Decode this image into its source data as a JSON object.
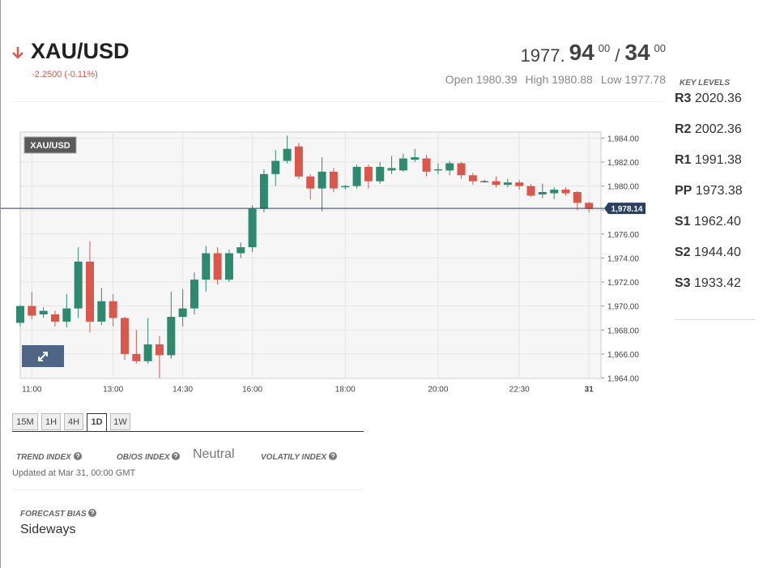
{
  "header": {
    "symbol": "XAU/USD",
    "change": "-2.2500 (-0.11%)",
    "bid": {
      "base": "1977.",
      "main": "94",
      "sup": "00"
    },
    "separator": "/",
    "ask": {
      "main": "34",
      "sup": "00"
    },
    "stats": [
      {
        "label": "Open",
        "value": "1980.39"
      },
      {
        "label": "High",
        "value": "1980.88"
      },
      {
        "label": "Low",
        "value": "1977.78"
      }
    ]
  },
  "key_levels": {
    "title": "KEY LEVELS",
    "levels": [
      {
        "name": "R3",
        "value": "2020.36"
      },
      {
        "name": "R2",
        "value": "2002.36"
      },
      {
        "name": "R1",
        "value": "1991.38"
      },
      {
        "name": "PP",
        "value": "1973.38"
      },
      {
        "name": "S1",
        "value": "1962.40"
      },
      {
        "name": "S2",
        "value": "1944.40"
      },
      {
        "name": "S3",
        "value": "1933.42"
      }
    ]
  },
  "chart_data": {
    "type": "candlestick",
    "title": "XAU/USD",
    "categories": [
      null,
      "11:00",
      null,
      null,
      null,
      null,
      null,
      null,
      "13:00",
      null,
      null,
      null,
      null,
      null,
      "14:30",
      null,
      null,
      null,
      null,
      null,
      "16:00",
      null,
      null,
      null,
      null,
      null,
      null,
      null,
      "18:00",
      null,
      null,
      null,
      null,
      null,
      null,
      null,
      "20:00",
      null,
      null,
      null,
      null,
      null,
      null,
      "22:30",
      null,
      null,
      null,
      null,
      null,
      "31"
    ],
    "open": [
      1968.6,
      1970.0,
      1969.3,
      1969.3,
      1968.7,
      1969.8,
      1973.7,
      1968.7,
      1970.4,
      1969.0,
      1966.0,
      1965.4,
      1966.8,
      1965.9,
      1969.1,
      1969.8,
      1972.2,
      1974.4,
      1972.2,
      1974.4,
      1974.9,
      1978.1,
      1981.0,
      1982.1,
      1983.3,
      1980.8,
      1979.8,
      1981.2,
      1979.9,
      1980.0,
      1981.6,
      1980.4,
      1981.3,
      1981.3,
      1982.2,
      1982.3,
      1981.3,
      1981.3,
      1981.9,
      1980.9,
      1980.4,
      1980.4,
      1980.1,
      1980.3,
      1980.0,
      1979.3,
      1979.4,
      1979.7,
      1979.5,
      1978.6
    ],
    "high": [
      1970.1,
      1971.2,
      1969.9,
      1969.6,
      1971.0,
      1974.9,
      1975.4,
      1971.5,
      1971.0,
      1969.1,
      1968.0,
      1969.0,
      1967.5,
      1971.2,
      1971.4,
      1972.8,
      1975.0,
      1974.9,
      1974.7,
      1975.3,
      1978.4,
      1981.4,
      1983.0,
      1984.2,
      1983.6,
      1981.0,
      1982.4,
      1981.5,
      1980.1,
      1981.8,
      1981.8,
      1982.0,
      1982.5,
      1982.7,
      1983.1,
      1982.6,
      1981.9,
      1982.1,
      1982.0,
      1981.1,
      1980.5,
      1980.8,
      1980.6,
      1980.5,
      1980.2,
      1980.2,
      1979.9,
      1979.9,
      1979.6,
      1978.7
    ],
    "low": [
      1968.3,
      1968.9,
      1969.0,
      1968.3,
      1968.2,
      1969.0,
      1967.8,
      1968.4,
      1968.3,
      1965.5,
      1965.2,
      1965.2,
      1964.0,
      1965.6,
      1968.3,
      1969.3,
      1971.2,
      1971.8,
      1972.0,
      1974.0,
      1974.5,
      1977.8,
      1980.0,
      1981.9,
      1980.6,
      1978.9,
      1977.9,
      1979.5,
      1979.7,
      1979.8,
      1979.8,
      1980.2,
      1981.0,
      1981.2,
      1982.0,
      1980.8,
      1981.0,
      1980.9,
      1980.6,
      1980.1,
      1980.3,
      1979.9,
      1979.9,
      1979.7,
      1979.1,
      1979.0,
      1978.9,
      1979.2,
      1978.0,
      1977.8
    ],
    "close": [
      1970.0,
      1969.2,
      1969.6,
      1968.7,
      1969.8,
      1973.7,
      1968.7,
      1970.4,
      1969.0,
      1966.0,
      1965.4,
      1966.8,
      1965.9,
      1969.1,
      1969.8,
      1972.2,
      1974.4,
      1972.2,
      1974.4,
      1974.9,
      1978.1,
      1981.0,
      1982.1,
      1983.1,
      1980.8,
      1979.8,
      1981.2,
      1979.8,
      1980.0,
      1981.6,
      1980.4,
      1981.6,
      1981.5,
      1982.3,
      1982.4,
      1981.2,
      1981.4,
      1981.9,
      1980.9,
      1980.4,
      1980.4,
      1980.1,
      1980.3,
      1980.0,
      1979.2,
      1979.5,
      1979.7,
      1979.4,
      1978.6,
      1978.1
    ],
    "up_color": "#2e8a6e",
    "down_color": "#d9574b",
    "flat_color": "#333333",
    "last_price": {
      "value": 1978.14,
      "label": "1,978.14"
    },
    "ylim": [
      1964,
      1984.5
    ],
    "yticks": [
      {
        "value": 1964,
        "label": "1,964.00"
      },
      {
        "value": 1966,
        "label": "1,966.00"
      },
      {
        "value": 1968,
        "label": "1,968.00"
      },
      {
        "value": 1970,
        "label": "1,970.00"
      },
      {
        "value": 1972,
        "label": "1,972.00"
      },
      {
        "value": 1974,
        "label": "1,974.00"
      },
      {
        "value": 1976,
        "label": "1,976.00"
      },
      {
        "value": 1978,
        "label": "1,978.00"
      },
      {
        "value": 1980,
        "label": "1,980.00"
      },
      {
        "value": 1982,
        "label": "1,982.00"
      },
      {
        "value": 1984,
        "label": "1,984.00"
      }
    ],
    "grid": true
  },
  "timeframes": {
    "options": [
      "15M",
      "1H",
      "4H",
      "1D",
      "1W"
    ],
    "active": 3
  },
  "indices": {
    "trend": "TREND INDEX",
    "obos": "OB/OS INDEX",
    "obos_value": "Neutral",
    "volatility": "VOLATILY INDEX",
    "updated": "Updated at Mar 31, 00:00 GMT"
  },
  "forecast": {
    "label": "FORECAST BIAS",
    "value": "Sideways"
  }
}
